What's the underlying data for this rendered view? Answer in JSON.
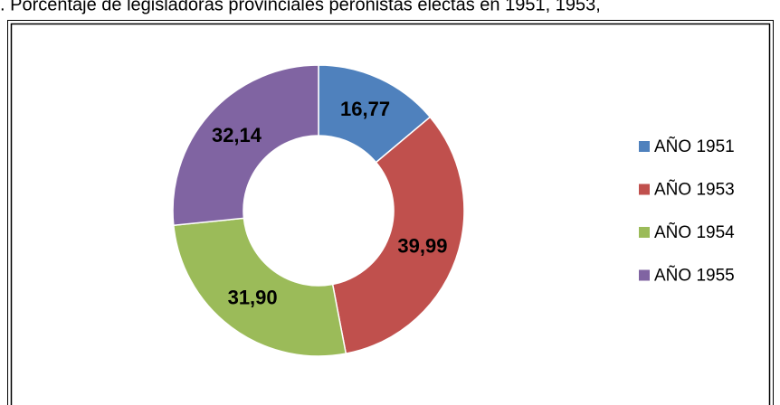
{
  "chart_data": {
    "type": "donut",
    "title": ". Porcentaje de legisladoras provinciales peronistas electas en 1951, 1953,",
    "categories": [
      "AÑO 1951",
      "AÑO 1953",
      "AÑO 1954",
      "AÑO 1955"
    ],
    "values": [
      16.77,
      39.99,
      31.9,
      32.14
    ],
    "value_labels": [
      "16,77",
      "39,99",
      "31,90",
      "32,14"
    ],
    "colors": [
      "#4f81bd",
      "#c0504d",
      "#9bbb59",
      "#8064a2"
    ],
    "legend": "right"
  }
}
